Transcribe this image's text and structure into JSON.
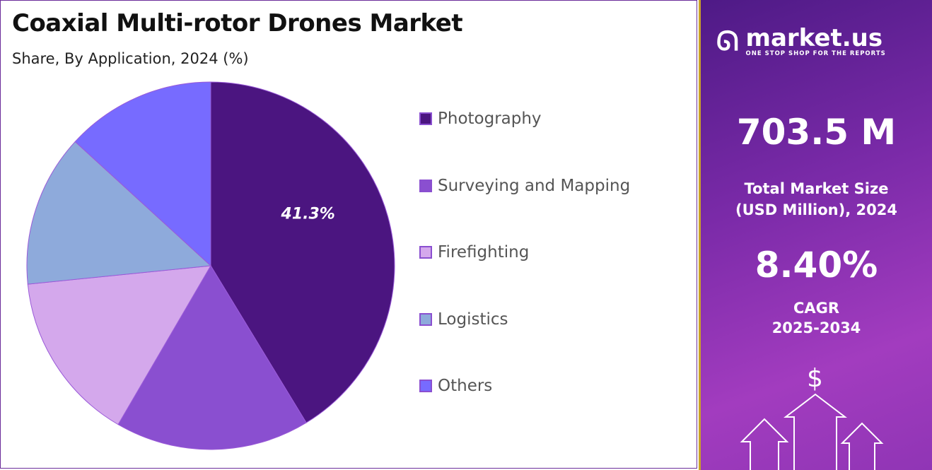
{
  "header": {
    "title": "Coaxial Multi-rotor Drones Market",
    "subtitle": "Share, By Application, 2024 (%)"
  },
  "chart_data": {
    "type": "pie",
    "categories": [
      "Photography",
      "Surveying and Mapping",
      "Firefighting",
      "Logistics",
      "Others"
    ],
    "values": [
      41.3,
      17.1,
      15.0,
      13.4,
      13.2
    ],
    "data_labels": [
      "41.3%",
      "",
      "",
      "",
      ""
    ],
    "colors": [
      "#4b1580",
      "#8a4fd0",
      "#d4a8ec",
      "#8eaadb",
      "#776bff"
    ],
    "legend_position": "right",
    "start": "top",
    "direction": "clockwise"
  },
  "side": {
    "logo_name": "market.us",
    "logo_tagline": "ONE STOP SHOP FOR THE REPORTS",
    "market_size": "703.5 M",
    "market_size_label_1": "Total Market Size",
    "market_size_label_2": "(USD Million), 2024",
    "cagr": "8.40%",
    "cagr_label_1": "CAGR",
    "cagr_label_2": "2025-2034",
    "dollar": "$"
  }
}
